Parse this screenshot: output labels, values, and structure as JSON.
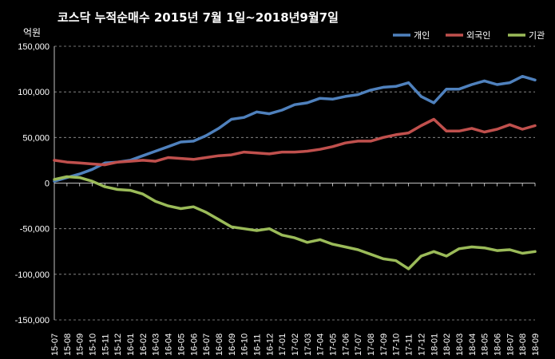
{
  "chart_data": {
    "type": "line",
    "title": "코스닥 누적순매수 2015년 7월 1일~2018년9월7일",
    "ylabel": "억원",
    "xlabel": "",
    "ylim": [
      -150000,
      150000
    ],
    "yticks": [
      150000,
      100000,
      50000,
      0,
      -50000,
      -100000,
      -150000
    ],
    "ytick_labels": [
      "150,000",
      "100,000",
      "50,000",
      "0",
      "-50,000",
      "-100,000",
      "-150,000"
    ],
    "categories": [
      "15-07",
      "15-08",
      "15-09",
      "15-10",
      "15-11",
      "15-12",
      "16-01",
      "16-02",
      "16-03",
      "16-04",
      "16-05",
      "16-06",
      "16-07",
      "16-08",
      "16-09",
      "16-10",
      "16-11",
      "16-12",
      "17-01",
      "17-02",
      "17-03",
      "17-04",
      "17-05",
      "17-06",
      "17-07",
      "17-08",
      "17-09",
      "17-10",
      "17-11",
      "17-12",
      "18-01",
      "18-02",
      "18-03",
      "18-04",
      "18-05",
      "18-06",
      "18-07",
      "18-08",
      "18-09"
    ],
    "grid": "horizontal dashed",
    "legend_position": "top-right",
    "series": [
      {
        "name": "개인",
        "color": "#4f81bd",
        "values": [
          2000,
          6000,
          10000,
          15000,
          22000,
          23000,
          25000,
          30000,
          35000,
          40000,
          45000,
          46000,
          52000,
          60000,
          70000,
          72000,
          78000,
          76000,
          80000,
          86000,
          88000,
          93000,
          92000,
          95000,
          97000,
          102000,
          105000,
          106000,
          110000,
          95000,
          88000,
          103000,
          103000,
          108000,
          112000,
          108000,
          110000,
          117000,
          113000
        ]
      },
      {
        "name": "외국인",
        "color": "#c0504d",
        "values": [
          25000,
          23000,
          22000,
          21000,
          20000,
          23000,
          24000,
          25000,
          24000,
          28000,
          27000,
          26000,
          28000,
          30000,
          31000,
          34000,
          33000,
          32000,
          34000,
          34000,
          35000,
          37000,
          40000,
          44000,
          46000,
          46000,
          50000,
          53000,
          55000,
          63000,
          70000,
          57000,
          57000,
          60000,
          56000,
          59000,
          64000,
          59000,
          63000
        ]
      },
      {
        "name": "기관",
        "color": "#9bbb59",
        "values": [
          4000,
          7000,
          6000,
          2000,
          -4000,
          -7000,
          -8000,
          -12000,
          -20000,
          -25000,
          -28000,
          -26000,
          -32000,
          -40000,
          -48000,
          -50000,
          -52000,
          -50000,
          -57000,
          -60000,
          -65000,
          -62000,
          -67000,
          -70000,
          -73000,
          -78000,
          -83000,
          -85000,
          -94000,
          -80000,
          -75000,
          -80000,
          -72000,
          -70000,
          -71000,
          -74000,
          -73000,
          -77000,
          -75000
        ]
      }
    ]
  }
}
